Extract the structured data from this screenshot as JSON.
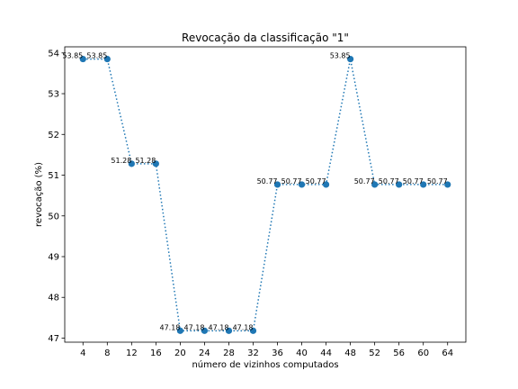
{
  "chart_data": {
    "type": "line",
    "title": "Revocação da classificação \"1\"",
    "xlabel": "número de vizinhos computados",
    "ylabel": "revocação (%)",
    "x": [
      4,
      8,
      12,
      16,
      20,
      24,
      28,
      32,
      36,
      40,
      44,
      48,
      52,
      56,
      60,
      64
    ],
    "y": [
      53.85,
      53.85,
      51.28,
      51.28,
      47.18,
      47.18,
      47.18,
      47.18,
      50.77,
      50.77,
      50.77,
      53.85,
      50.77,
      50.77,
      50.77,
      50.77
    ],
    "data_labels": [
      "53.85",
      "53.85",
      "51.28",
      "51.28",
      "47.18",
      "47.18",
      "47.18",
      "47.18",
      "50.77",
      "50.77",
      "50.77",
      "53.85",
      "50.77",
      "50.77",
      "50.77",
      "50.77"
    ],
    "xticks": [
      4,
      8,
      12,
      16,
      20,
      24,
      28,
      32,
      36,
      40,
      44,
      48,
      52,
      56,
      60,
      64
    ],
    "yticks": [
      47,
      48,
      49,
      50,
      51,
      52,
      53,
      54
    ],
    "xlim": [
      1,
      67
    ],
    "ylim": [
      46.9,
      54.15
    ],
    "line_style": "dotted",
    "marker": "circle",
    "color": "#1f77b4",
    "grid": false
  }
}
